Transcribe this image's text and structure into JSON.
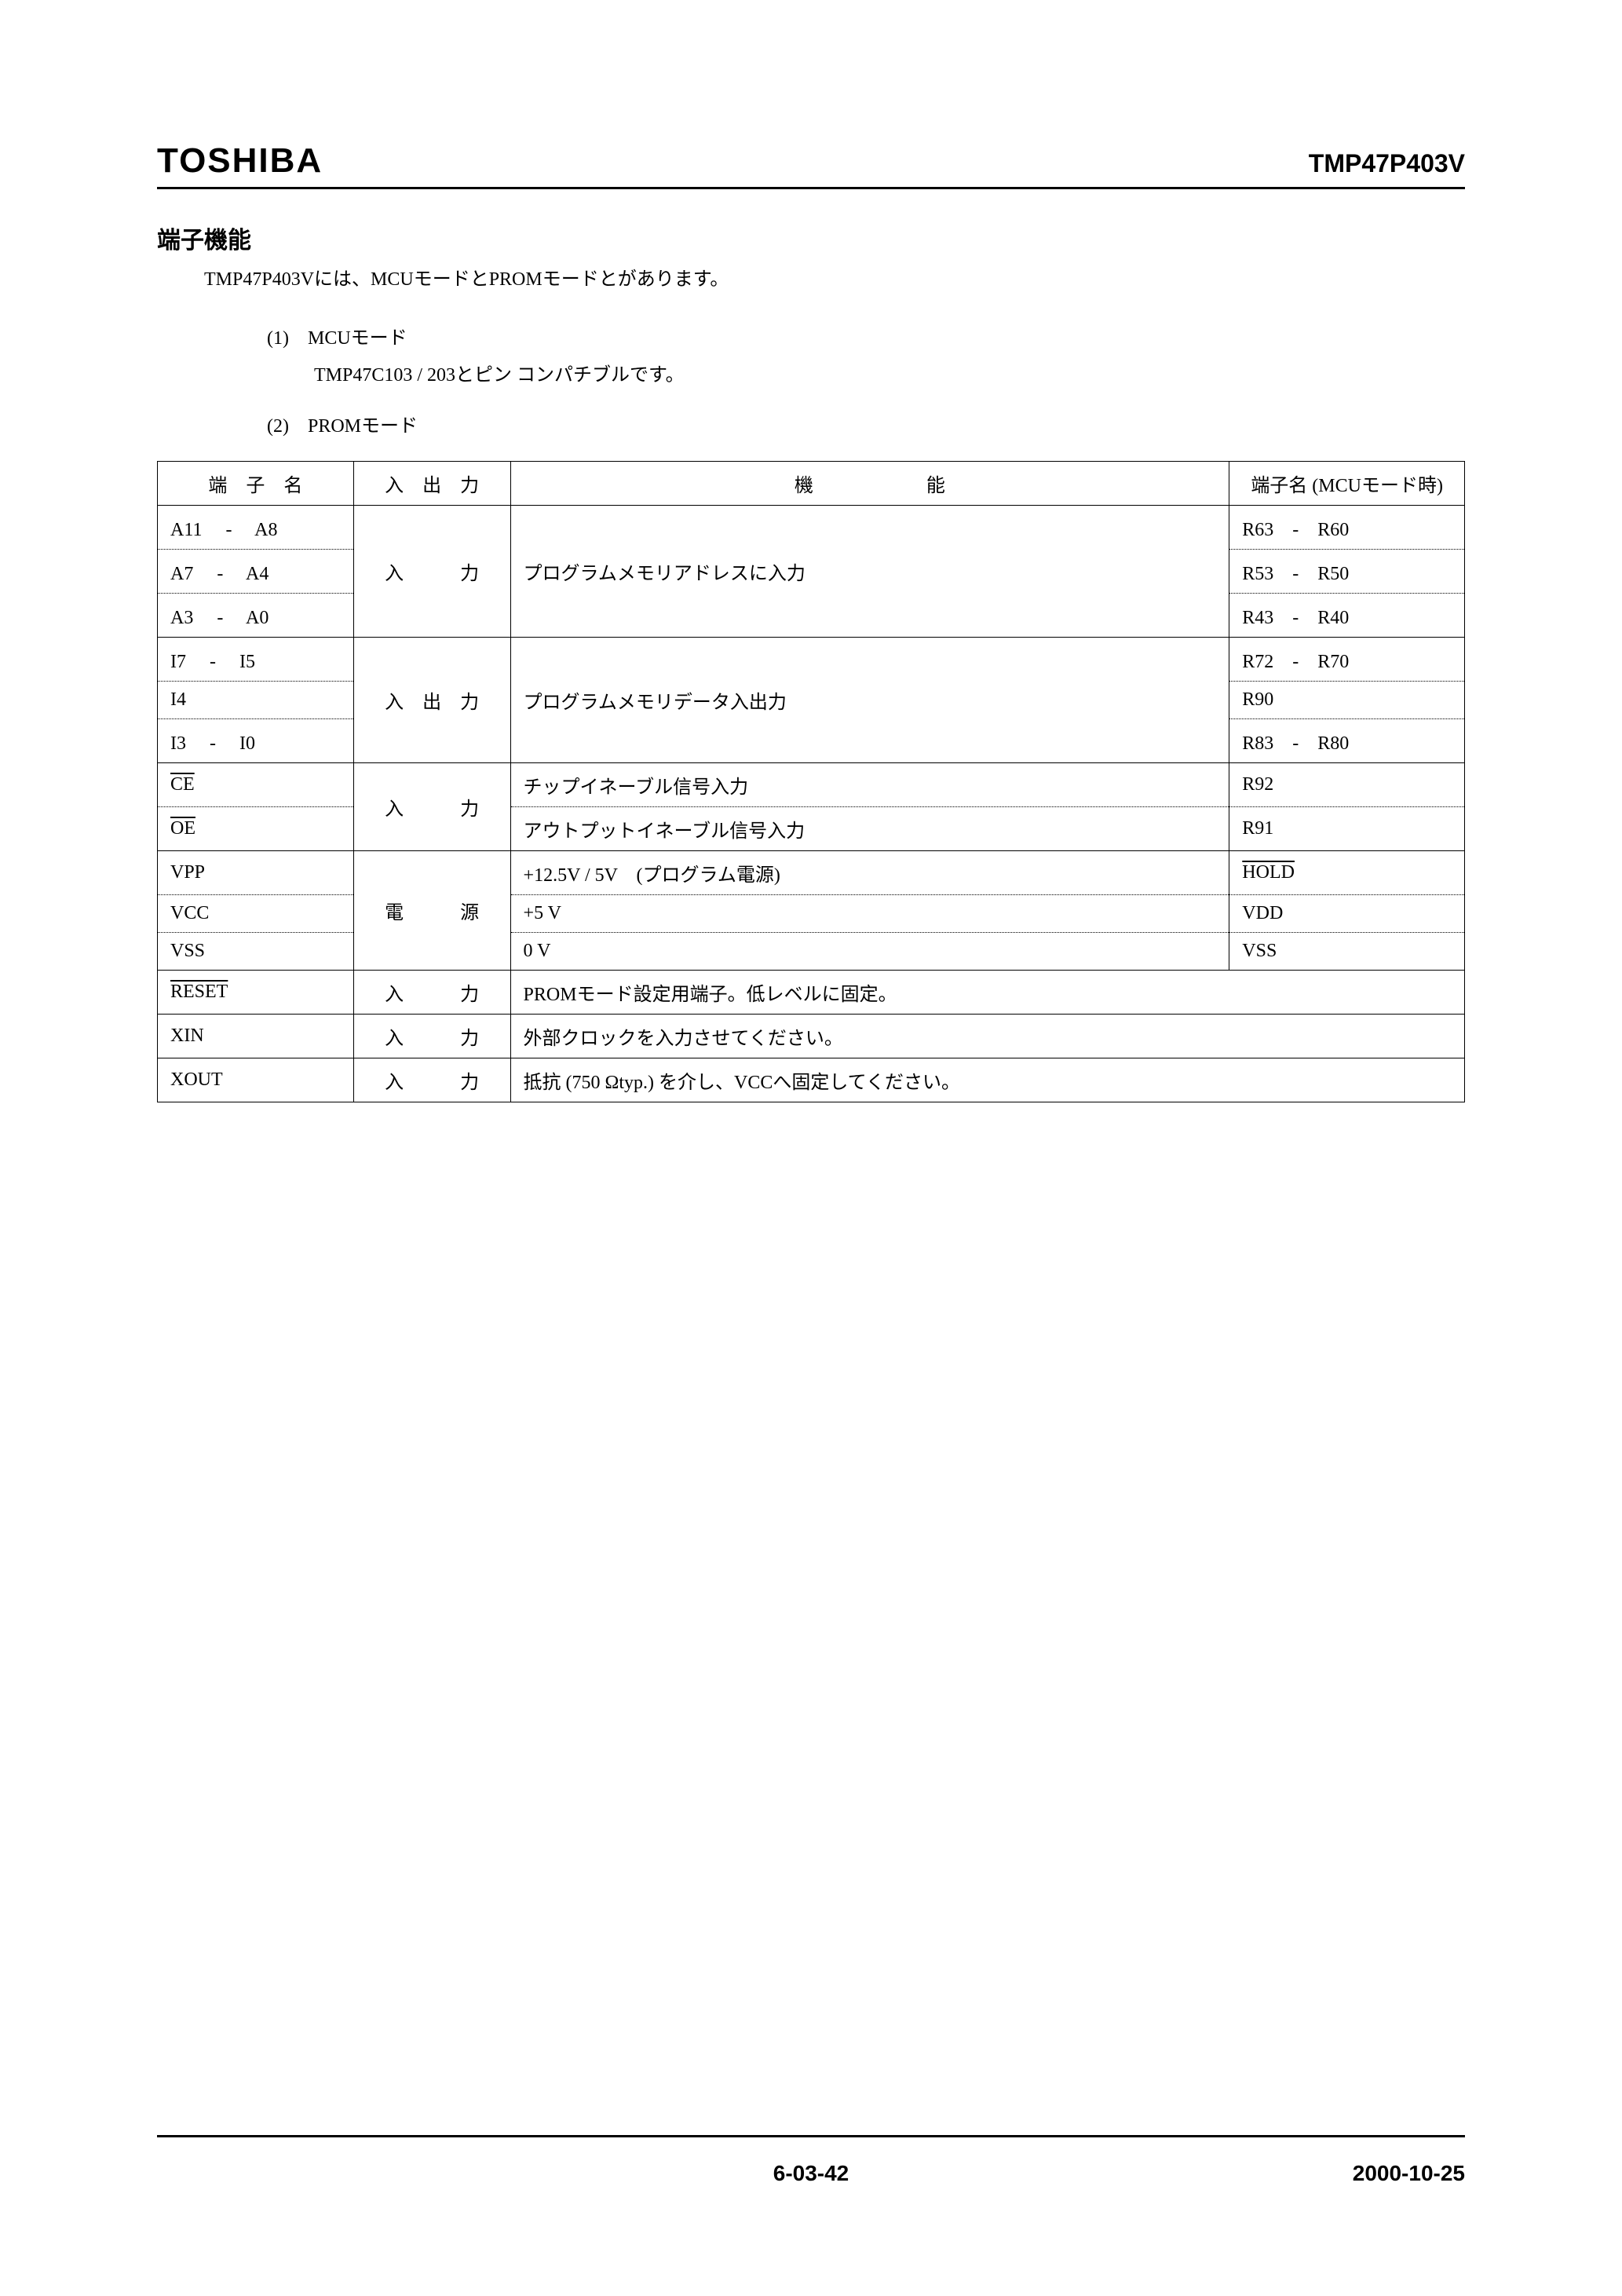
{
  "header": {
    "brand": "TOSHIBA",
    "part": "TMP47P403V"
  },
  "section": {
    "title": "端子機能",
    "intro": "TMP47P403Vには、MCUモードとPROMモードとがあります。",
    "mode1_num": "(1)",
    "mode1_label": "MCUモード",
    "mode1_desc": "TMP47C103 / 203とピン コンパチブルです。",
    "mode2_num": "(2)",
    "mode2_label": "PROMモード"
  },
  "table": {
    "th_name": "端　子　名",
    "th_io": "入　出　力",
    "th_func": "機　　　　　　能",
    "th_mcu": "端子名 (MCUモード時)",
    "rows": {
      "r1_name": "A11　 -　 A8",
      "r1_mcu": "R63　-　R60",
      "r2_name": "A7　  -　 A4",
      "r2_io": "入　　　力",
      "r2_func": "プログラムメモリアドレスに入力",
      "r2_mcu": "R53　-　R50",
      "r3_name": "A3　  -　 A0",
      "r3_mcu": "R43　-　R40",
      "r4_name": "I7　   -　 I5",
      "r4_mcu": "R72　-　R70",
      "r5_name": "I4",
      "r5_io": "入　出　力",
      "r5_func": "プログラムメモリデータ入出力",
      "r5_mcu": "R90",
      "r6_name": "I3　   -　 I0",
      "r6_mcu": "R83　-　R80",
      "r7_name": "CE",
      "r7_io": "入　　　力",
      "r7_func": "チップイネーブル信号入力",
      "r7_mcu": "R92",
      "r8_name": "OE",
      "r8_func": "アウトプットイネーブル信号入力",
      "r8_mcu": "R91",
      "r9_name": "VPP",
      "r9_func": "+12.5V / 5V　(プログラム電源)",
      "r9_mcu": "HOLD",
      "r10_name": "VCC",
      "r10_io": "電　　　源",
      "r10_func": "+5 V",
      "r10_mcu": "VDD",
      "r11_name": "VSS",
      "r11_func": "0 V",
      "r11_mcu": "VSS",
      "r12_name": "RESET",
      "r12_io": "入　　　力",
      "r12_func": "PROMモード設定用端子。低レベルに固定。",
      "r13_name": "XIN",
      "r13_io": "入　　　力",
      "r13_func": "外部クロックを入力させてください。",
      "r14_name": "XOUT",
      "r14_io": "入　　　力",
      "r14_func": "抵抗 (750 Ωtyp.) を介し、VCCへ固定してください。"
    }
  },
  "footer": {
    "page": "6-03-42",
    "date": "2000-10-25"
  }
}
